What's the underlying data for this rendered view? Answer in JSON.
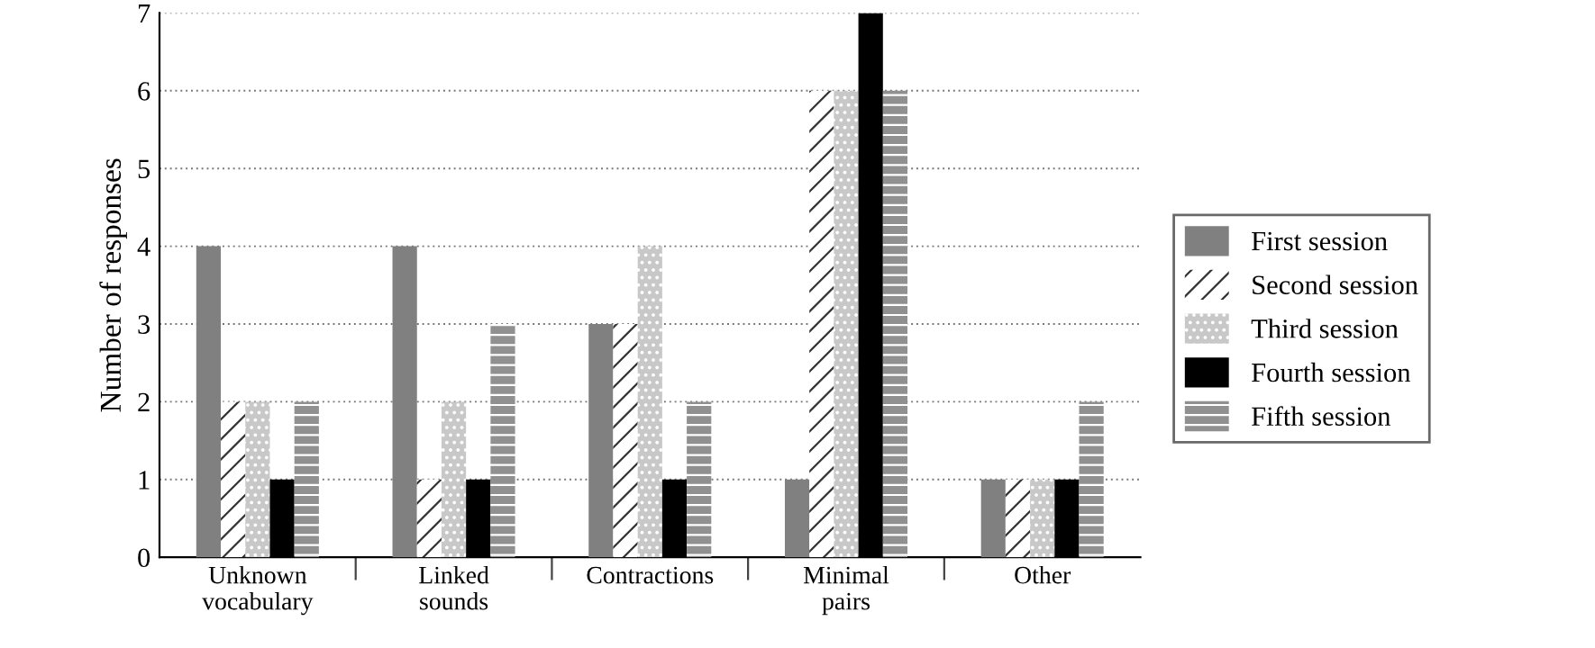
{
  "chart_data": {
    "type": "bar",
    "ylabel": "Number of responses",
    "categories": [
      "Unknown\nvocabulary",
      "Linked\nsounds",
      "Contractions",
      "Minimal\npairs",
      "Other"
    ],
    "series": [
      {
        "name": "First session",
        "color": "#808080",
        "values": [
          4,
          4,
          3,
          1,
          1
        ]
      },
      {
        "name": "Second session",
        "color": "#ffffff",
        "values": [
          2,
          1,
          3,
          6,
          1
        ]
      },
      {
        "name": "Third session",
        "color": "#c8c8c8",
        "values": [
          2,
          2,
          4,
          6,
          1
        ]
      },
      {
        "name": "Fourth session",
        "color": "#000000",
        "values": [
          1,
          1,
          1,
          7,
          1
        ]
      },
      {
        "name": "Fifth session",
        "color": "#909090",
        "values": [
          2,
          3,
          2,
          6,
          2
        ]
      }
    ],
    "ylim": [
      0,
      7
    ],
    "yticks": [
      0,
      1,
      2,
      3,
      4,
      5,
      6,
      7
    ],
    "grid": "y",
    "legend": "right"
  }
}
